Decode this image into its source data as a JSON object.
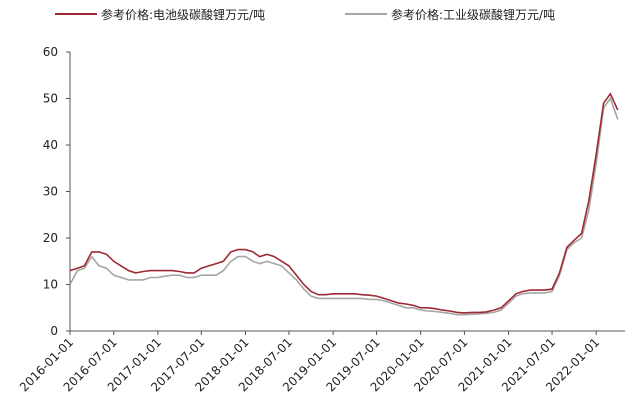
{
  "chart_data": {
    "type": "line",
    "x": [
      "2016-01-01",
      "2016-02-01",
      "2016-03-01",
      "2016-04-01",
      "2016-05-01",
      "2016-06-01",
      "2016-07-01",
      "2016-08-01",
      "2016-09-01",
      "2016-10-01",
      "2016-11-01",
      "2016-12-01",
      "2017-01-01",
      "2017-02-01",
      "2017-03-01",
      "2017-04-01",
      "2017-05-01",
      "2017-06-01",
      "2017-07-01",
      "2017-08-01",
      "2017-09-01",
      "2017-10-01",
      "2017-11-01",
      "2017-12-01",
      "2018-01-01",
      "2018-02-01",
      "2018-03-01",
      "2018-04-01",
      "2018-05-01",
      "2018-06-01",
      "2018-07-01",
      "2018-08-01",
      "2018-09-01",
      "2018-10-01",
      "2018-11-01",
      "2018-12-01",
      "2019-01-01",
      "2019-02-01",
      "2019-03-01",
      "2019-04-01",
      "2019-05-01",
      "2019-06-01",
      "2019-07-01",
      "2019-08-01",
      "2019-09-01",
      "2019-10-01",
      "2019-11-01",
      "2019-12-01",
      "2020-01-01",
      "2020-02-01",
      "2020-03-01",
      "2020-04-01",
      "2020-05-01",
      "2020-06-01",
      "2020-07-01",
      "2020-08-01",
      "2020-09-01",
      "2020-10-01",
      "2020-11-01",
      "2020-12-01",
      "2021-01-01",
      "2021-02-01",
      "2021-03-01",
      "2021-04-01",
      "2021-05-01",
      "2021-06-01",
      "2021-07-01",
      "2021-08-01",
      "2021-09-01",
      "2021-10-01",
      "2021-11-01",
      "2021-12-01",
      "2022-01-01",
      "2022-02-01",
      "2022-03-01",
      "2022-04-01"
    ],
    "series": [
      {
        "name": "参考价格:电池级碳酸锂万元/吨",
        "color": "#9e2a35",
        "values": [
          13,
          13.5,
          14,
          17,
          17,
          16.5,
          15,
          14,
          13,
          12.5,
          12.8,
          13,
          13,
          13,
          13,
          12.8,
          12.5,
          12.5,
          13.5,
          14,
          14.5,
          15,
          17,
          17.5,
          17.5,
          17,
          16,
          16.5,
          16,
          15,
          14,
          12,
          10,
          8.5,
          7.8,
          7.8,
          8,
          8,
          8,
          8,
          7.8,
          7.7,
          7.5,
          7,
          6.5,
          6,
          5.8,
          5.5,
          5,
          5,
          4.8,
          4.5,
          4.3,
          4,
          3.9,
          4,
          4,
          4.1,
          4.5,
          5,
          6.5,
          8,
          8.5,
          8.8,
          8.8,
          8.8,
          9,
          12.5,
          18,
          19.5,
          21,
          28,
          38,
          49,
          51,
          47.5
        ]
      },
      {
        "name": "参考价格:工业级碳酸锂万元/吨",
        "color": "#a6a6a6",
        "values": [
          10,
          13,
          13.5,
          16,
          14,
          13.5,
          12,
          11.5,
          11,
          11,
          11,
          11.5,
          11.5,
          11.8,
          12,
          12,
          11.5,
          11.5,
          12,
          12,
          12,
          13,
          15,
          16,
          16,
          15,
          14.5,
          15,
          14.5,
          14,
          12.5,
          11,
          9,
          7.5,
          7,
          7,
          7,
          7,
          7,
          7,
          7,
          6.8,
          6.8,
          6.5,
          6,
          5.5,
          5,
          5,
          4.5,
          4.3,
          4.2,
          4,
          3.8,
          3.5,
          3.5,
          3.6,
          3.7,
          3.8,
          4,
          4.5,
          6,
          7.5,
          8,
          8.2,
          8.2,
          8.2,
          8.5,
          12,
          17.5,
          19,
          20,
          26,
          36,
          48,
          50,
          45.5
        ]
      }
    ],
    "xlim": [
      "2016-01-01",
      "2022-05-01"
    ],
    "xticks": [
      "2016-01-01",
      "2016-07-01",
      "2017-01-01",
      "2017-07-01",
      "2018-01-01",
      "2018-07-01",
      "2019-01-01",
      "2019-07-01",
      "2020-01-01",
      "2020-07-01",
      "2021-01-01",
      "2021-07-01",
      "2022-01-01"
    ],
    "ylim": [
      0,
      60
    ],
    "yticks": [
      0,
      10,
      20,
      30,
      40,
      50,
      60
    ],
    "grid": false
  }
}
